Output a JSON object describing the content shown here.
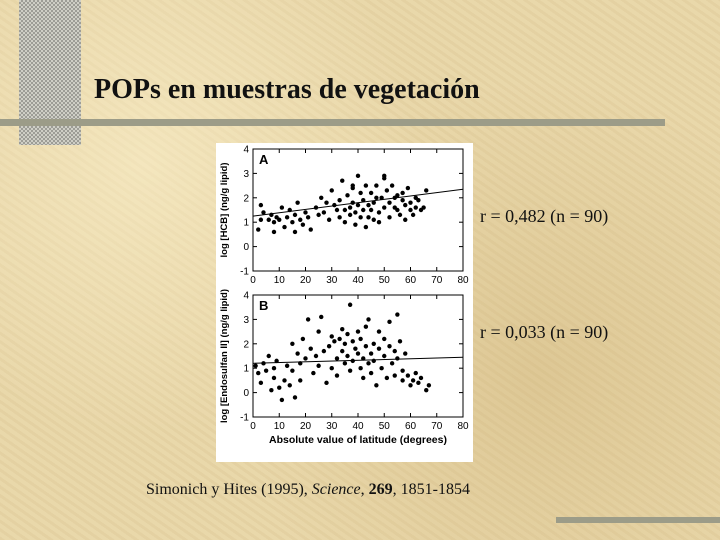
{
  "slide": {
    "title": "POPs en muestras de vegetación",
    "stat_a": "r = 0,482 (n = 90)",
    "stat_b": "r = 0,033 (n = 90)",
    "citation": {
      "authors": "Simonich y Hites (1995),",
      "journal": "Science",
      "volume": "269",
      "pages": "1851-1854"
    }
  },
  "chart_data": [
    {
      "type": "scatter",
      "panel_label": "A",
      "ylabel": "log [HCB] (ng/g lipid)",
      "xlabel": "",
      "xlim": [
        0,
        80
      ],
      "ylim": [
        -1,
        4
      ],
      "xticks": [
        "0",
        "10",
        "20",
        "30",
        "40",
        "50",
        "60",
        "70",
        "80"
      ],
      "yticks": [
        "-1",
        "0",
        "1",
        "2",
        "3",
        "4"
      ],
      "trendline": {
        "x": [
          0,
          80
        ],
        "y": [
          1.25,
          2.35
        ]
      },
      "points": [
        [
          2,
          0.7
        ],
        [
          3,
          1.1
        ],
        [
          3,
          1.7
        ],
        [
          4,
          1.4
        ],
        [
          6,
          1.1
        ],
        [
          7,
          1.3
        ],
        [
          8,
          1.0
        ],
        [
          8,
          0.6
        ],
        [
          9,
          1.2
        ],
        [
          10,
          1.1
        ],
        [
          11,
          1.6
        ],
        [
          12,
          0.8
        ],
        [
          13,
          1.2
        ],
        [
          14,
          1.5
        ],
        [
          15,
          1.0
        ],
        [
          16,
          0.6
        ],
        [
          16,
          1.3
        ],
        [
          17,
          1.8
        ],
        [
          18,
          1.1
        ],
        [
          19,
          0.9
        ],
        [
          20,
          1.4
        ],
        [
          21,
          1.2
        ],
        [
          22,
          0.7
        ],
        [
          24,
          1.6
        ],
        [
          25,
          1.3
        ],
        [
          26,
          2.0
        ],
        [
          27,
          1.4
        ],
        [
          28,
          1.8
        ],
        [
          29,
          1.1
        ],
        [
          30,
          2.3
        ],
        [
          31,
          1.7
        ],
        [
          32,
          1.5
        ],
        [
          33,
          1.9
        ],
        [
          33,
          1.2
        ],
        [
          34,
          2.7
        ],
        [
          35,
          1.5
        ],
        [
          35,
          1.0
        ],
        [
          36,
          2.1
        ],
        [
          37,
          1.6
        ],
        [
          37,
          1.3
        ],
        [
          38,
          2.4
        ],
        [
          38,
          1.8
        ],
        [
          39,
          1.4
        ],
        [
          39,
          0.9
        ],
        [
          40,
          1.7
        ],
        [
          40,
          2.9
        ],
        [
          41,
          2.2
        ],
        [
          41,
          1.2
        ],
        [
          42,
          1.9
        ],
        [
          42,
          1.5
        ],
        [
          43,
          2.5
        ],
        [
          43,
          0.8
        ],
        [
          44,
          1.7
        ],
        [
          44,
          1.2
        ],
        [
          45,
          2.2
        ],
        [
          45,
          1.5
        ],
        [
          46,
          1.8
        ],
        [
          46,
          1.1
        ],
        [
          47,
          2.0
        ],
        [
          47,
          2.5
        ],
        [
          48,
          1.4
        ],
        [
          48,
          1.0
        ],
        [
          49,
          2.0
        ],
        [
          50,
          2.8
        ],
        [
          50,
          1.6
        ],
        [
          51,
          2.3
        ],
        [
          52,
          1.2
        ],
        [
          52,
          1.8
        ],
        [
          53,
          2.5
        ],
        [
          54,
          1.6
        ],
        [
          54,
          2.0
        ],
        [
          55,
          2.1
        ],
        [
          55,
          1.5
        ],
        [
          56,
          1.3
        ],
        [
          57,
          1.9
        ],
        [
          57,
          2.2
        ],
        [
          58,
          1.1
        ],
        [
          58,
          1.7
        ],
        [
          59,
          2.4
        ],
        [
          60,
          1.8
        ],
        [
          60,
          1.5
        ],
        [
          61,
          1.3
        ],
        [
          62,
          2.0
        ],
        [
          62,
          1.6
        ],
        [
          63,
          1.9
        ],
        [
          64,
          1.5
        ],
        [
          65,
          1.6
        ],
        [
          66,
          2.3
        ],
        [
          50,
          2.9
        ],
        [
          38,
          2.5
        ]
      ]
    },
    {
      "type": "scatter",
      "panel_label": "B",
      "ylabel": "log [Endosulfan II] (ng/g lipid)",
      "xlabel": "Absolute value of latitude (degrees)",
      "xlim": [
        0,
        80
      ],
      "ylim": [
        -1,
        4
      ],
      "xticks": [
        "0",
        "10",
        "20",
        "30",
        "40",
        "50",
        "60",
        "70",
        "80"
      ],
      "yticks": [
        "-1",
        "0",
        "1",
        "2",
        "3",
        "4"
      ],
      "trendline": {
        "x": [
          0,
          80
        ],
        "y": [
          1.2,
          1.45
        ]
      },
      "points": [
        [
          1,
          1.1
        ],
        [
          2,
          0.8
        ],
        [
          3,
          0.4
        ],
        [
          4,
          1.2
        ],
        [
          5,
          0.9
        ],
        [
          6,
          1.5
        ],
        [
          7,
          0.1
        ],
        [
          8,
          0.6
        ],
        [
          8,
          1.0
        ],
        [
          9,
          1.3
        ],
        [
          10,
          0.2
        ],
        [
          11,
          -0.3
        ],
        [
          12,
          0.5
        ],
        [
          13,
          1.1
        ],
        [
          14,
          0.3
        ],
        [
          15,
          2.0
        ],
        [
          15,
          0.9
        ],
        [
          16,
          -0.2
        ],
        [
          17,
          1.6
        ],
        [
          18,
          1.2
        ],
        [
          18,
          0.5
        ],
        [
          19,
          2.2
        ],
        [
          20,
          1.4
        ],
        [
          21,
          3.0
        ],
        [
          22,
          1.8
        ],
        [
          23,
          0.8
        ],
        [
          24,
          1.5
        ],
        [
          25,
          2.5
        ],
        [
          25,
          1.1
        ],
        [
          26,
          3.1
        ],
        [
          27,
          1.7
        ],
        [
          28,
          0.4
        ],
        [
          29,
          1.9
        ],
        [
          30,
          2.3
        ],
        [
          30,
          1.0
        ],
        [
          31,
          2.1
        ],
        [
          32,
          1.4
        ],
        [
          32,
          0.7
        ],
        [
          33,
          2.2
        ],
        [
          34,
          1.7
        ],
        [
          34,
          2.6
        ],
        [
          35,
          1.2
        ],
        [
          35,
          2.0
        ],
        [
          36,
          2.4
        ],
        [
          36,
          1.5
        ],
        [
          37,
          3.6
        ],
        [
          37,
          0.9
        ],
        [
          38,
          2.1
        ],
        [
          38,
          1.3
        ],
        [
          39,
          1.8
        ],
        [
          40,
          2.5
        ],
        [
          40,
          1.6
        ],
        [
          41,
          1.0
        ],
        [
          41,
          2.2
        ],
        [
          42,
          1.4
        ],
        [
          42,
          0.6
        ],
        [
          43,
          2.7
        ],
        [
          43,
          1.9
        ],
        [
          44,
          1.2
        ],
        [
          44,
          3.0
        ],
        [
          45,
          1.6
        ],
        [
          45,
          0.8
        ],
        [
          46,
          2.0
        ],
        [
          46,
          1.3
        ],
        [
          47,
          0.3
        ],
        [
          48,
          1.8
        ],
        [
          48,
          2.5
        ],
        [
          49,
          1.0
        ],
        [
          50,
          2.2
        ],
        [
          50,
          1.5
        ],
        [
          51,
          0.6
        ],
        [
          52,
          1.9
        ],
        [
          52,
          2.9
        ],
        [
          53,
          1.2
        ],
        [
          54,
          1.7
        ],
        [
          54,
          0.7
        ],
        [
          55,
          3.2
        ],
        [
          55,
          1.4
        ],
        [
          56,
          2.1
        ],
        [
          57,
          0.9
        ],
        [
          57,
          0.5
        ],
        [
          58,
          1.6
        ],
        [
          59,
          0.7
        ],
        [
          60,
          0.3
        ],
        [
          61,
          0.5
        ],
        [
          62,
          0.8
        ],
        [
          63,
          0.4
        ],
        [
          64,
          0.6
        ],
        [
          66,
          0.1
        ],
        [
          67,
          0.3
        ]
      ]
    }
  ]
}
